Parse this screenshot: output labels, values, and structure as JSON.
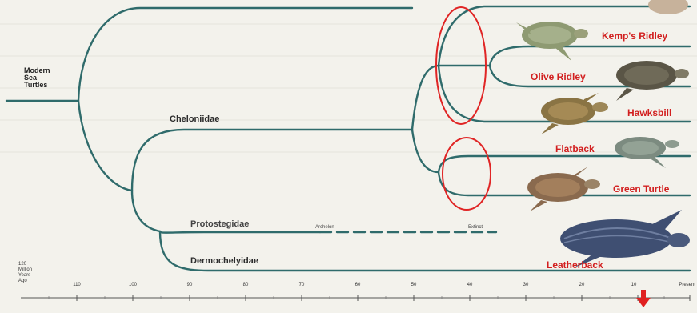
{
  "root_label": [
    "Modern",
    "Sea",
    "Turtles"
  ],
  "groups": {
    "cheloniidae": "Cheloniidae",
    "protostegidae": "Protostegidae",
    "dermochelyidae": "Dermochelyidae"
  },
  "annotations": {
    "archelon": "Archelon",
    "extinct": "Extinct"
  },
  "species": {
    "kemps_ridley": "Kemp's Ridley",
    "olive_ridley": "Olive Ridley",
    "hawksbill": "Hawksbill",
    "flatback": "Flatback",
    "green_turtle": "Green Turtle",
    "leatherback": "Leatherback"
  },
  "timescale": {
    "title": [
      "120",
      "Million",
      "Years",
      "Ago"
    ],
    "ticks": [
      "110",
      "100",
      "90",
      "80",
      "70",
      "60",
      "50",
      "40",
      "30",
      "20",
      "10",
      "Present"
    ]
  },
  "colors": {
    "branch": "#2f6b6b",
    "species_label": "#d21f1f",
    "highlight_circle": "#e02525",
    "arrow": "#e02020"
  },
  "icons": [
    "sea-turtle-icon",
    "leatherback-turtle-icon",
    "down-arrow-icon"
  ]
}
